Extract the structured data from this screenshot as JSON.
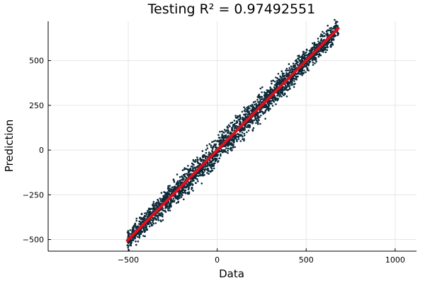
{
  "chart_data": {
    "type": "scatter",
    "title": "Testing R² = 0.97492551",
    "xlabel": "Data",
    "ylabel": "Prediction",
    "xlim": [
      -950,
      1120
    ],
    "ylim": [
      -565,
      720
    ],
    "x_ticks": [
      -500,
      0,
      500,
      1000
    ],
    "y_ticks": [
      -500,
      -250,
      0,
      250,
      500
    ],
    "x_tick_labels": [
      "−500",
      "0",
      "500",
      "1000"
    ],
    "y_tick_labels": [
      "−500",
      "−250",
      "0",
      "250",
      "500"
    ],
    "grid": true,
    "legend": "none",
    "series": [
      {
        "kind": "scatter",
        "color": "#0b2a3a",
        "x_range": [
          -505,
          680
        ],
        "values": [
          [
            -505,
            -505
          ],
          [
            -480,
            -470
          ],
          [
            -460,
            -458
          ],
          [
            -440,
            -452
          ],
          [
            -420,
            -425
          ],
          [
            -400,
            -395
          ],
          [
            -380,
            -360
          ],
          [
            -360,
            -345
          ],
          [
            -350,
            -310
          ],
          [
            -330,
            -330
          ],
          [
            -310,
            -300
          ],
          [
            -300,
            -262
          ],
          [
            -280,
            -285
          ],
          [
            -260,
            -250
          ],
          [
            -240,
            -210
          ],
          [
            -220,
            -230
          ],
          [
            -200,
            -185
          ],
          [
            -180,
            -175
          ],
          [
            -160,
            -140
          ],
          [
            -140,
            -160
          ],
          [
            -120,
            -110
          ],
          [
            -100,
            -95
          ],
          [
            -80,
            -75
          ],
          [
            -60,
            -70
          ],
          [
            -40,
            -30
          ],
          [
            -20,
            -15
          ],
          [
            0,
            5
          ],
          [
            20,
            15
          ],
          [
            40,
            45
          ],
          [
            60,
            50
          ],
          [
            80,
            90
          ],
          [
            100,
            95
          ],
          [
            120,
            130
          ],
          [
            140,
            125
          ],
          [
            160,
            170
          ],
          [
            180,
            175
          ],
          [
            200,
            215
          ],
          [
            220,
            210
          ],
          [
            240,
            255
          ],
          [
            260,
            250
          ],
          [
            280,
            300
          ],
          [
            300,
            290
          ],
          [
            320,
            335
          ],
          [
            340,
            330
          ],
          [
            360,
            375
          ],
          [
            380,
            370
          ],
          [
            400,
            420
          ],
          [
            420,
            410
          ],
          [
            440,
            455
          ],
          [
            460,
            450
          ],
          [
            480,
            495
          ],
          [
            500,
            490
          ],
          [
            520,
            540
          ],
          [
            540,
            530
          ],
          [
            560,
            575
          ],
          [
            580,
            570
          ],
          [
            600,
            615
          ],
          [
            620,
            610
          ],
          [
            640,
            640
          ],
          [
            680,
            650
          ]
        ]
      },
      {
        "kind": "line",
        "color": "#e0101b",
        "x": [
          -505,
          680
        ],
        "values": [
          -505,
          680
        ]
      }
    ]
  }
}
